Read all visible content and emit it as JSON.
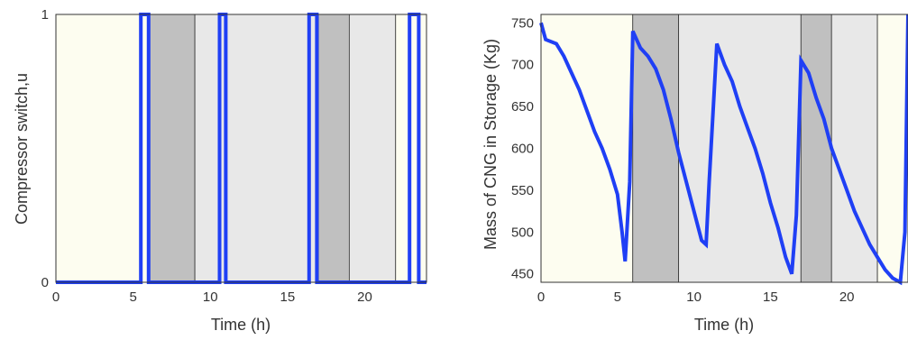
{
  "colors": {
    "trace": "#1f3ff5",
    "band_light": "#fdfdf0",
    "band_dark": "#c0c0c0",
    "band_mid": "#e8e8e8",
    "frame": "#333333"
  },
  "chart_data": [
    {
      "type": "line",
      "xlabel": "Time (h)",
      "ylabel": "Compressor switch,u",
      "xlim": [
        0,
        24
      ],
      "ylim": [
        0,
        1
      ],
      "xticks": [
        "0",
        "5",
        "10",
        "15",
        "20"
      ],
      "yticks": [
        "0",
        "1"
      ],
      "bands": [
        {
          "x0": 0,
          "x1": 6,
          "shade": "light"
        },
        {
          "x0": 6,
          "x1": 9,
          "shade": "dark"
        },
        {
          "x0": 9,
          "x1": 17,
          "shade": "mid"
        },
        {
          "x0": 17,
          "x1": 19,
          "shade": "dark"
        },
        {
          "x0": 19,
          "x1": 22,
          "shade": "mid"
        },
        {
          "x0": 22,
          "x1": 24,
          "shade": "light"
        }
      ],
      "series": [
        {
          "x": [
            0,
            5.5,
            5.5,
            6.0,
            6.0,
            10.6,
            10.6,
            11.0,
            11.0,
            16.4,
            16.4,
            16.9,
            16.9,
            22.9,
            22.9,
            23.5,
            23.5,
            24
          ],
          "y": [
            0,
            0,
            1,
            1,
            0,
            0,
            1,
            1,
            0,
            0,
            1,
            1,
            0,
            0,
            1,
            1,
            0,
            0
          ]
        }
      ]
    },
    {
      "type": "line",
      "xlabel": "Time (h)",
      "ylabel": "Mass of CNG in Storage (Kg)",
      "xlim": [
        0,
        24
      ],
      "ylim": [
        440,
        760
      ],
      "xticks": [
        "0",
        "5",
        "10",
        "15",
        "20"
      ],
      "yticks": [
        "450",
        "500",
        "550",
        "600",
        "650",
        "700",
        "750"
      ],
      "bands": [
        {
          "x0": 0,
          "x1": 6,
          "shade": "light"
        },
        {
          "x0": 6,
          "x1": 9,
          "shade": "dark"
        },
        {
          "x0": 9,
          "x1": 17,
          "shade": "mid"
        },
        {
          "x0": 17,
          "x1": 19,
          "shade": "dark"
        },
        {
          "x0": 19,
          "x1": 22,
          "shade": "mid"
        },
        {
          "x0": 22,
          "x1": 24,
          "shade": "light"
        }
      ],
      "series": [
        {
          "x": [
            0,
            0.3,
            1.0,
            1.5,
            2.0,
            2.5,
            3.0,
            3.5,
            4.0,
            4.5,
            5.0,
            5.3,
            5.5,
            5.8,
            6.0,
            6.5,
            7.0,
            7.5,
            8.0,
            8.5,
            9.0,
            9.5,
            10.0,
            10.5,
            10.8,
            11.0,
            11.5,
            12.0,
            12.5,
            13.0,
            13.5,
            14.0,
            14.5,
            15.0,
            15.5,
            16.0,
            16.4,
            16.7,
            17.0,
            17.5,
            18.0,
            18.5,
            19.0,
            19.5,
            20.0,
            20.5,
            21.0,
            21.5,
            22.0,
            22.5,
            23.0,
            23.5,
            23.8,
            24.0
          ],
          "y": [
            750,
            730,
            725,
            710,
            690,
            670,
            645,
            620,
            600,
            575,
            545,
            500,
            465,
            560,
            740,
            720,
            710,
            695,
            670,
            635,
            595,
            560,
            525,
            490,
            485,
            560,
            725,
            700,
            680,
            650,
            625,
            600,
            570,
            535,
            505,
            470,
            450,
            520,
            705,
            690,
            660,
            635,
            600,
            575,
            550,
            525,
            505,
            485,
            470,
            455,
            445,
            440,
            500,
            760
          ]
        }
      ]
    }
  ]
}
